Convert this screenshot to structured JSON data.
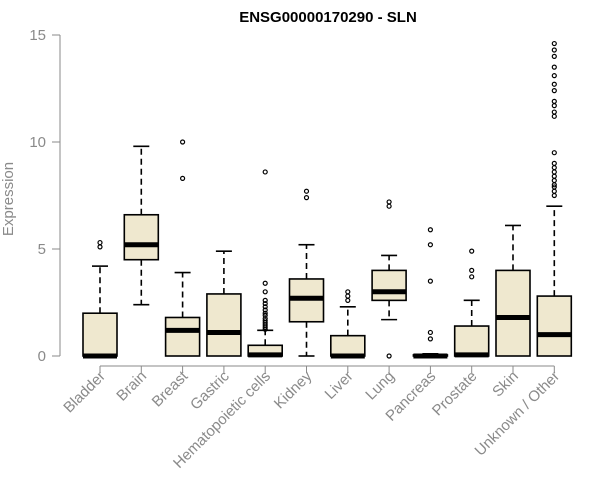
{
  "chart_data": {
    "type": "boxplot",
    "title": "ENSG00000170290 - SLN",
    "xlabel": "",
    "ylabel": "Expression",
    "ylim": [
      0,
      15
    ],
    "yticks": [
      0,
      5,
      10,
      15
    ],
    "colors": {
      "box_fill": "#efe8cf",
      "line": "#000000",
      "axis": "#8a8a8a"
    },
    "categories": [
      "Bladder",
      "Brain",
      "Breast",
      "Gastric",
      "Hematopoietic cells",
      "Kidney",
      "Liver",
      "Lung",
      "Pancreas",
      "Prostate",
      "Skin",
      "Unknown / Other"
    ],
    "series": [
      {
        "name": "Bladder",
        "whisker_low": 0,
        "q1": 0,
        "median": 0,
        "q3": 2.0,
        "whisker_high": 4.2,
        "outliers": [
          5.1,
          5.3
        ]
      },
      {
        "name": "Brain",
        "whisker_low": 2.4,
        "q1": 4.5,
        "median": 5.2,
        "q3": 6.6,
        "whisker_high": 9.8,
        "outliers": []
      },
      {
        "name": "Breast",
        "whisker_low": 0,
        "q1": 0,
        "median": 1.2,
        "q3": 1.8,
        "whisker_high": 3.9,
        "outliers": [
          8.3,
          10.0
        ]
      },
      {
        "name": "Gastric",
        "whisker_low": 0,
        "q1": 0,
        "median": 1.1,
        "q3": 2.9,
        "whisker_high": 4.9,
        "outliers": []
      },
      {
        "name": "Hematopoietic cells",
        "whisker_low": 0,
        "q1": 0,
        "median": 0.05,
        "q3": 0.5,
        "whisker_high": 1.2,
        "outliers": [
          1.25,
          1.35,
          1.45,
          1.55,
          1.65,
          1.75,
          1.9,
          2.0,
          2.15,
          2.3,
          2.45,
          2.6,
          3.0,
          3.4,
          8.6
        ]
      },
      {
        "name": "Kidney",
        "whisker_low": 0,
        "q1": 1.6,
        "median": 2.7,
        "q3": 3.6,
        "whisker_high": 5.2,
        "outliers": [
          7.4,
          7.7
        ]
      },
      {
        "name": "Liver",
        "whisker_low": 0,
        "q1": 0,
        "median": 0,
        "q3": 0.95,
        "whisker_high": 2.3,
        "outliers": [
          2.6,
          2.8,
          3.0
        ]
      },
      {
        "name": "Lung",
        "whisker_low": 1.7,
        "q1": 2.6,
        "median": 3.0,
        "q3": 4.0,
        "whisker_high": 4.7,
        "outliers": [
          0,
          7.0,
          7.2
        ]
      },
      {
        "name": "Pancreas",
        "whisker_low": 0,
        "q1": 0,
        "median": 0,
        "q3": 0.05,
        "whisker_high": 0.1,
        "outliers": [
          0.8,
          1.1,
          3.5,
          5.2,
          5.9
        ]
      },
      {
        "name": "Prostate",
        "whisker_low": 0,
        "q1": 0,
        "median": 0.05,
        "q3": 1.4,
        "whisker_high": 2.6,
        "outliers": [
          3.7,
          4.0,
          4.9
        ]
      },
      {
        "name": "Skin",
        "whisker_low": 0,
        "q1": 0,
        "median": 1.8,
        "q3": 4.0,
        "whisker_high": 6.1,
        "outliers": []
      },
      {
        "name": "Unknown / Other",
        "whisker_low": 0,
        "q1": 0,
        "median": 1.0,
        "q3": 2.8,
        "whisker_high": 7.0,
        "outliers": [
          7.5,
          7.7,
          7.9,
          8.0,
          8.2,
          8.4,
          8.6,
          8.8,
          9.0,
          9.5,
          11.2,
          11.4,
          11.7,
          11.9,
          12.4,
          12.7,
          13.1,
          13.5,
          14.0,
          14.3,
          14.6
        ]
      }
    ]
  }
}
